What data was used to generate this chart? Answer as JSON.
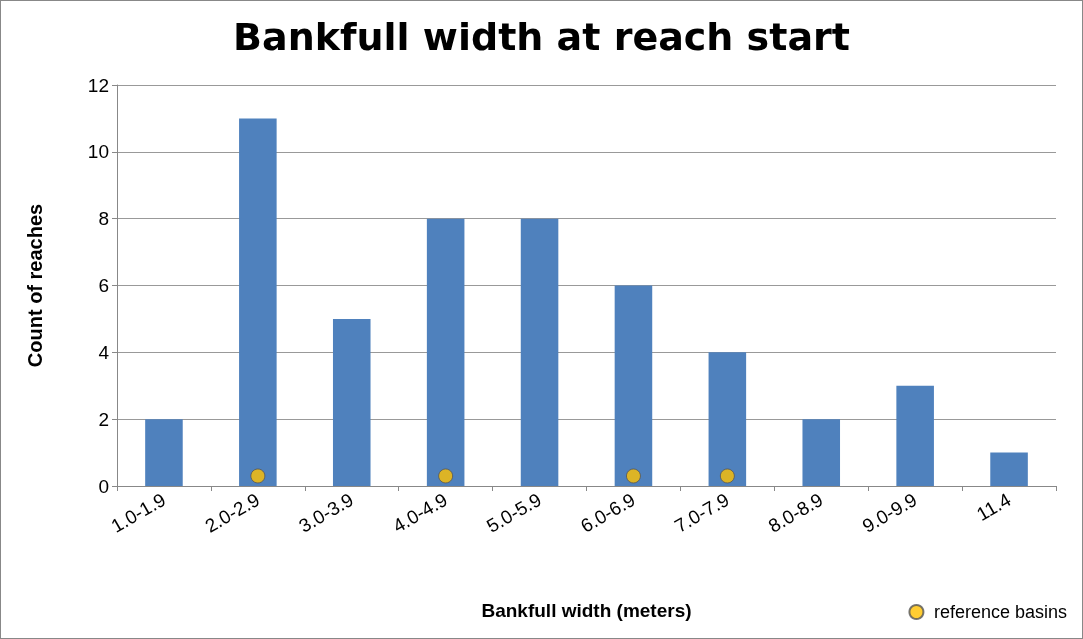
{
  "chart_data": {
    "type": "bar",
    "title": "Bankfull width at reach start",
    "xlabel": "Bankfull width (meters)",
    "ylabel": "Count of reaches",
    "categories": [
      "1.0-1.9",
      "2.0-2.9",
      "3.0-3.9",
      "4.0-4.9",
      "5.0-5.9",
      "6.0-6.9",
      "7.0-7.9",
      "8.0-8.9",
      "9.0-9.9",
      "11.4"
    ],
    "series": [
      {
        "color": "#4f81bd",
        "values": [
          2,
          11,
          5,
          8,
          8,
          6,
          4,
          2,
          3,
          1
        ]
      },
      {
        "type": "scatter",
        "name": "reference basins",
        "color": "#ffc000",
        "marker": "circle",
        "x": [
          "2.0-2.9",
          "4.0-4.9",
          "6.0-6.9",
          "7.0-7.9"
        ],
        "values": [
          0.3,
          0.3,
          0.3,
          0.3
        ]
      }
    ],
    "ylim": [
      0,
      12
    ],
    "yticks": [
      0,
      2,
      4,
      6,
      8,
      10,
      12
    ],
    "grid": "y",
    "legend": "bottom right"
  }
}
